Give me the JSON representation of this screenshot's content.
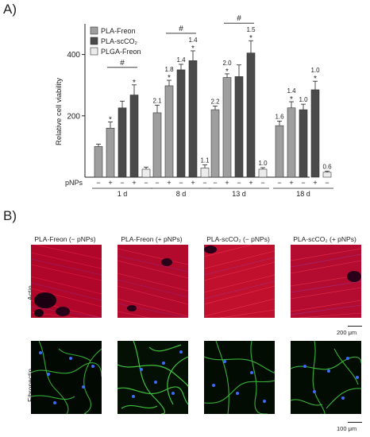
{
  "panels": {
    "a_label": "A)",
    "b_label": "B)"
  },
  "chart_data": {
    "type": "bar",
    "ylabel": "Relative cell viability",
    "ylim": [
      0,
      500
    ],
    "yticks": [
      200,
      400
    ],
    "xrow_label": "pNPs",
    "groups": [
      "1 d",
      "8 d",
      "13 d",
      "18 d"
    ],
    "pnp_signs": [
      "−",
      "+",
      "−",
      "+",
      "−"
    ],
    "series": [
      {
        "name": "PLA-Freon",
        "color": "#9e9e9e"
      },
      {
        "name": "PLA-scCO₂",
        "color": "#4a4a4a"
      },
      {
        "name": "PLGA-Freon",
        "color": "#ececec"
      }
    ],
    "bars": [
      {
        "group": 0,
        "series": 0,
        "pnps": "−",
        "value": 100,
        "err": 8
      },
      {
        "group": 0,
        "series": 0,
        "pnps": "+",
        "value": 160,
        "err": 20,
        "star": "*"
      },
      {
        "group": 0,
        "series": 1,
        "pnps": "−",
        "value": 226,
        "err": 22
      },
      {
        "group": 0,
        "series": 1,
        "pnps": "+",
        "value": 268,
        "err": 33,
        "star": "*"
      },
      {
        "group": 0,
        "series": 2,
        "pnps": "−",
        "value": 26,
        "err": 7
      },
      {
        "group": 1,
        "series": 0,
        "pnps": "−",
        "value": 210,
        "err": 25,
        "label": "2.1"
      },
      {
        "group": 1,
        "series": 0,
        "pnps": "+",
        "value": 298,
        "err": 18,
        "label": "1.8",
        "star": "*"
      },
      {
        "group": 1,
        "series": 1,
        "pnps": "−",
        "value": 350,
        "err": 18,
        "label": "1.4"
      },
      {
        "group": 1,
        "series": 1,
        "pnps": "+",
        "value": 380,
        "err": 32,
        "label": "1.4",
        "star": "*"
      },
      {
        "group": 1,
        "series": 2,
        "pnps": "−",
        "value": 30,
        "err": 10,
        "label": "1.1"
      },
      {
        "group": 2,
        "series": 0,
        "pnps": "−",
        "value": 220,
        "err": 12,
        "label": "2.2"
      },
      {
        "group": 2,
        "series": 0,
        "pnps": "+",
        "value": 325,
        "err": 12,
        "label": "2.0",
        "star": "*"
      },
      {
        "group": 2,
        "series": 1,
        "pnps": "−",
        "value": 328,
        "err": 38
      },
      {
        "group": 2,
        "series": 1,
        "pnps": "+",
        "value": 405,
        "err": 40,
        "label": "1.5",
        "star": "*"
      },
      {
        "group": 2,
        "series": 2,
        "pnps": "−",
        "value": 26,
        "err": 5,
        "label": "1.0"
      },
      {
        "group": 3,
        "series": 0,
        "pnps": "−",
        "value": 168,
        "err": 15,
        "label": "1.6"
      },
      {
        "group": 3,
        "series": 0,
        "pnps": "+",
        "value": 226,
        "err": 20,
        "label": "1.4",
        "star": "*"
      },
      {
        "group": 3,
        "series": 1,
        "pnps": "−",
        "value": 220,
        "err": 18,
        "label": "1.0"
      },
      {
        "group": 3,
        "series": 1,
        "pnps": "+",
        "value": 285,
        "err": 28,
        "label": "1.0",
        "star": "*"
      },
      {
        "group": 3,
        "series": 2,
        "pnps": "−",
        "value": 16,
        "err": 4,
        "label": "0.6"
      }
    ],
    "significance": [
      {
        "group": 0,
        "from_bar": 1,
        "to_bar": 3,
        "label": "#"
      },
      {
        "group": 1,
        "from_bar": 1,
        "to_bar": 3,
        "label": "#"
      },
      {
        "group": 2,
        "from_bar": 1,
        "to_bar": 3,
        "label": "#"
      }
    ]
  },
  "micrographs": {
    "columns": [
      "PLA-Freon (− pNPs)",
      "PLA-Freon (+ pNPs)",
      "PLA-scCO₂ (− pNPs)",
      "PLA-scCO₂ (+ pNPs)"
    ],
    "rows": [
      {
        "label": "Actin",
        "stain": "red",
        "scale_bar": "200 μm"
      },
      {
        "label": "Fibronectin",
        "stain": "green",
        "scale_bar": "100 μm"
      }
    ]
  }
}
